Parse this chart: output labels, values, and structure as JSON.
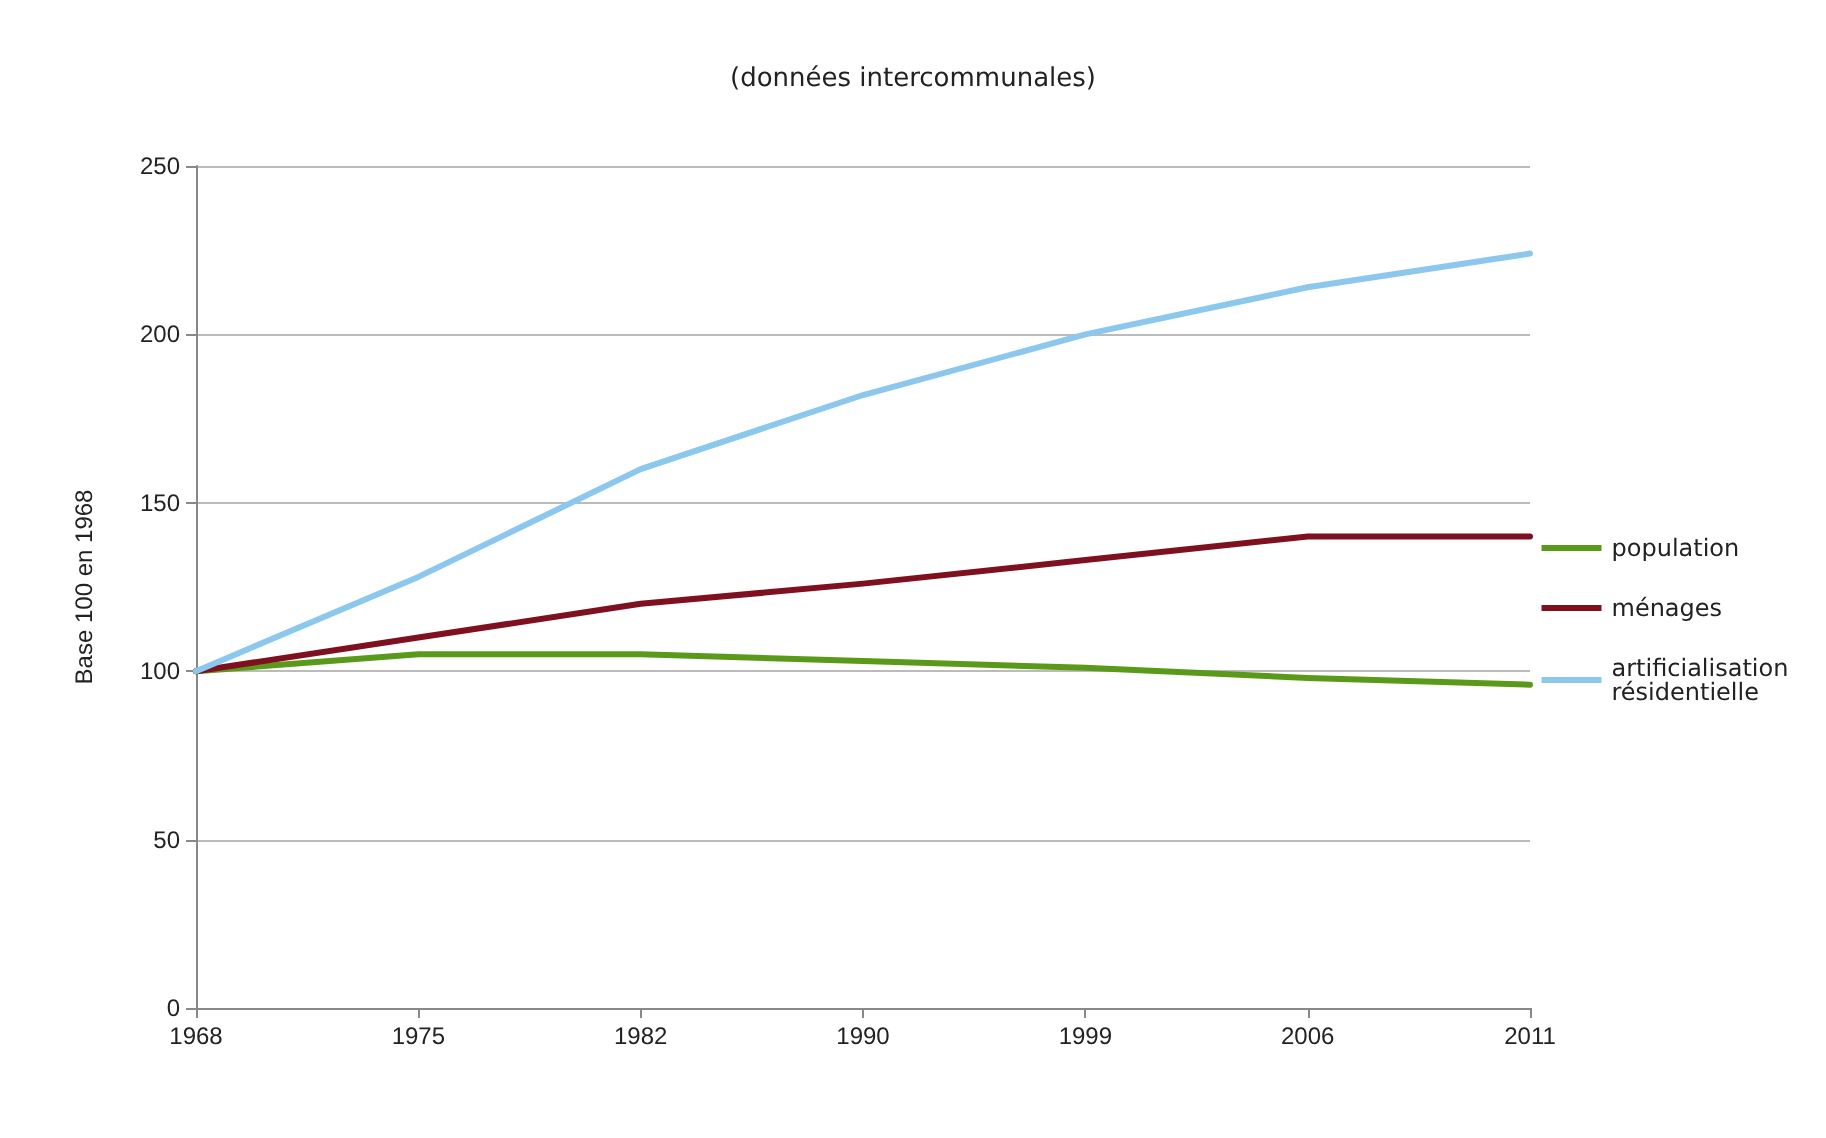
{
  "chart_data": {
    "type": "line",
    "title": "(données intercommunales)",
    "ylabel": "Base 100 en 1968",
    "categories": [
      "1968",
      "1975",
      "1982",
      "1990",
      "1999",
      "2006",
      "2011"
    ],
    "series": [
      {
        "name": "population",
        "color": "#5a9a1a",
        "values": [
          100,
          105,
          105,
          103,
          101,
          98,
          96
        ]
      },
      {
        "name": "ménages",
        "color": "#7f1020",
        "values": [
          100,
          110,
          120,
          126,
          133,
          140,
          140
        ]
      },
      {
        "name": "artificialisation résidentielle",
        "color": "#8cc8ee",
        "values": [
          100,
          128,
          160,
          182,
          200,
          214,
          224
        ]
      }
    ],
    "ylim": [
      0,
      250
    ],
    "yticks": [
      0,
      50,
      100,
      150,
      200,
      250
    ],
    "grid": "y",
    "legend": "right",
    "marker": "none",
    "line_style": "solid"
  }
}
